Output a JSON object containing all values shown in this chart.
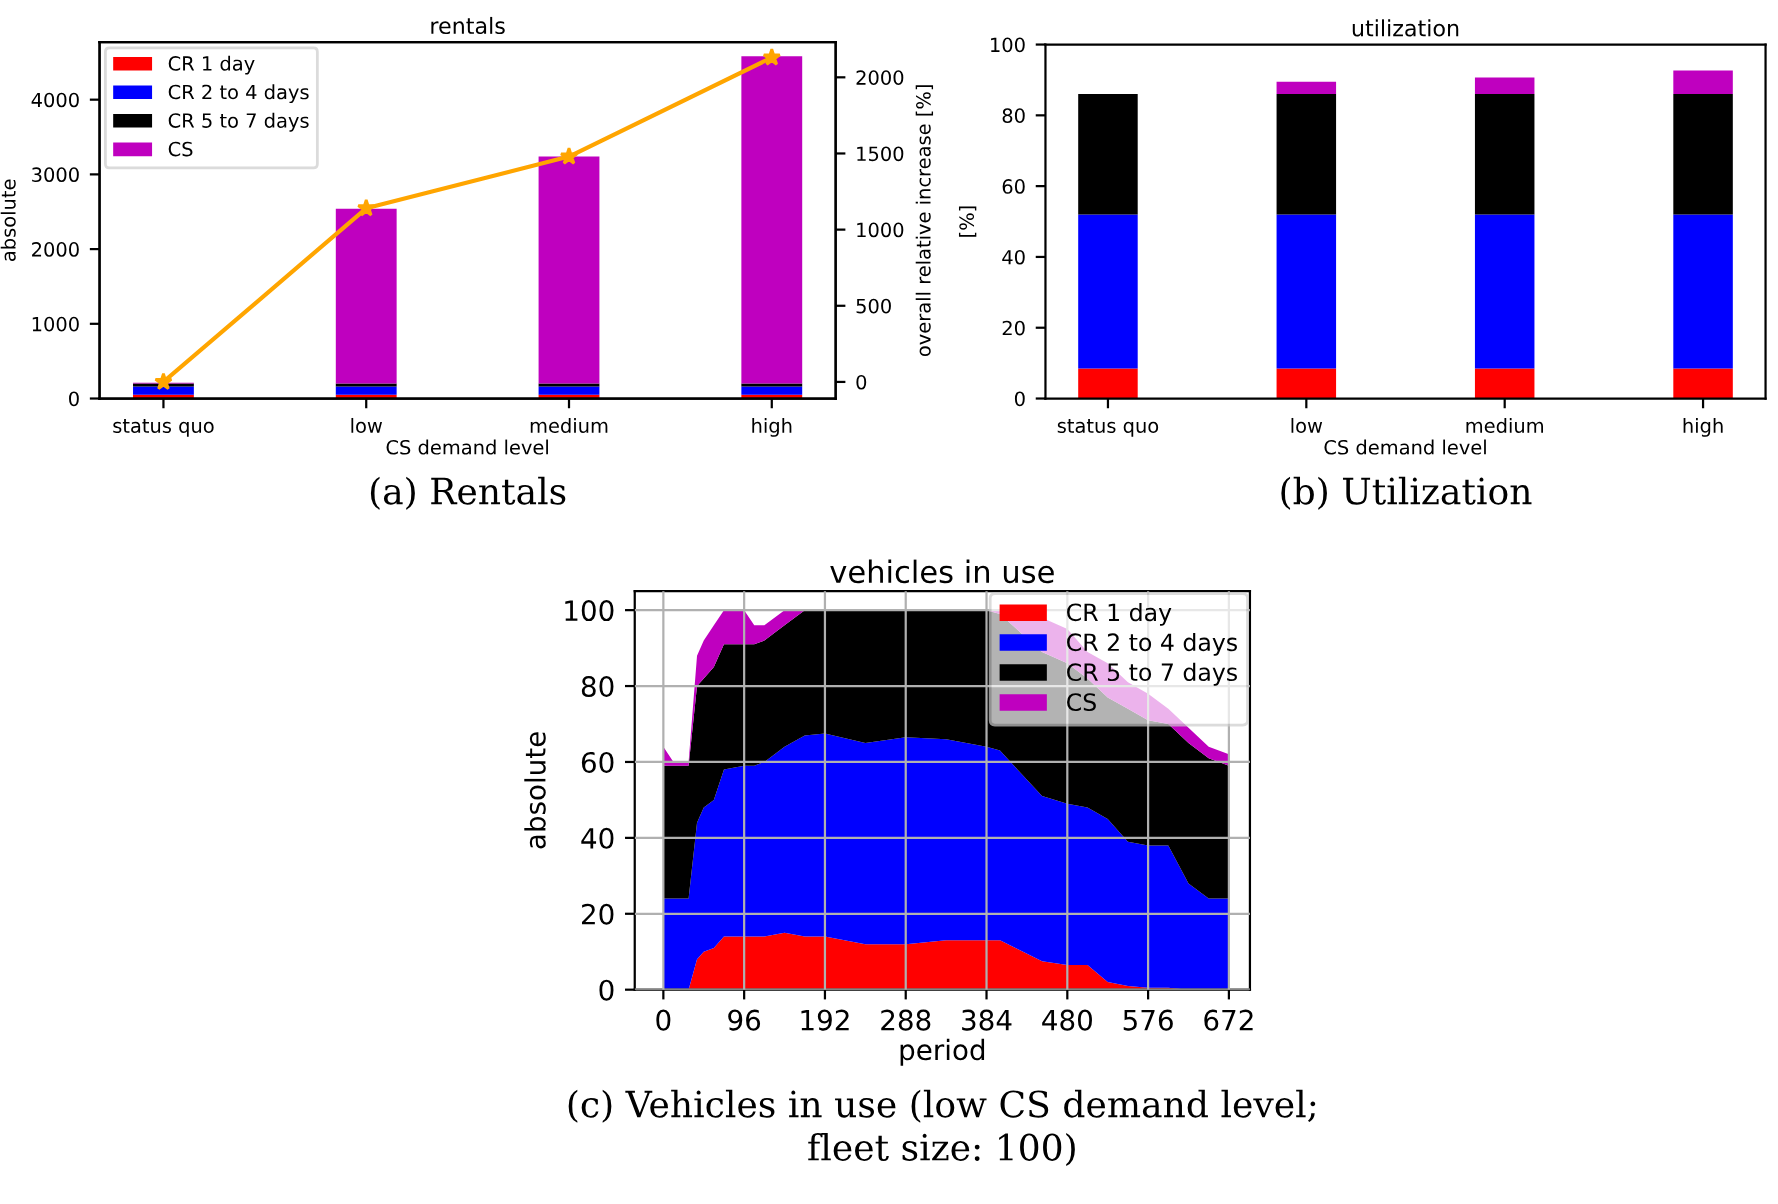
{
  "chart_data": [
    {
      "type": "bar",
      "title": "rentals",
      "stacked": true,
      "categories": [
        "status quo",
        "low",
        "medium",
        "high"
      ],
      "xlabel": "CS demand level",
      "ylabel": "absolute",
      "y2label": "overall relative increase [%]",
      "ylim": [
        0,
        4770
      ],
      "yticks": [
        0,
        1000,
        2000,
        3000,
        4000
      ],
      "y2lim": [
        -109,
        2231
      ],
      "y2ticks": [
        0,
        500,
        1000,
        1500,
        2000
      ],
      "legend": "top left",
      "grid": false,
      "series": [
        {
          "name": "CR 1 day",
          "color": "#ff0000",
          "values": [
            50,
            50,
            50,
            50
          ]
        },
        {
          "name": "CR 2 to 4 days",
          "color": "#0000ff",
          "values": [
            110,
            110,
            110,
            110
          ]
        },
        {
          "name": "CR 5 to 7 days",
          "color": "#000000",
          "values": [
            40,
            40,
            40,
            40
          ]
        },
        {
          "name": "CS",
          "color": "#bf00bf",
          "values": [
            10,
            2340,
            3040,
            4380
          ]
        },
        {
          "type": "line",
          "axis": "y2",
          "color": "#ffa500",
          "marker": "star",
          "values": [
            0,
            1140,
            1480,
            2130
          ]
        }
      ],
      "annotations": [
        "(a) Rentals"
      ]
    },
    {
      "type": "bar",
      "title": "utilization",
      "stacked": true,
      "categories": [
        "status quo",
        "low",
        "medium",
        "high"
      ],
      "xlabel": "CS demand level",
      "ylabel": "[%]",
      "ylim": [
        0,
        100
      ],
      "yticks": [
        0,
        20,
        40,
        60,
        80,
        100
      ],
      "legend": false,
      "grid": false,
      "series": [
        {
          "color": "#ff0000",
          "values": [
            8.5,
            8.5,
            8.5,
            8.5
          ]
        },
        {
          "color": "#0000ff",
          "values": [
            43.5,
            43.5,
            43.5,
            43.5
          ]
        },
        {
          "color": "#000000",
          "values": [
            34,
            34,
            34,
            34
          ]
        },
        {
          "color": "#bf00bf",
          "values": [
            0,
            3.5,
            4.7,
            6.7
          ]
        }
      ],
      "annotations": [
        "(b) Utilization"
      ]
    },
    {
      "type": "area",
      "title": "vehicles in use",
      "stacked": true,
      "xlabel": "period",
      "ylabel": "absolute",
      "x": [
        0,
        12,
        30,
        40,
        48,
        60,
        72,
        96,
        108,
        120,
        144,
        168,
        192,
        240,
        288,
        336,
        384,
        400,
        450,
        480,
        504,
        528,
        552,
        576,
        600,
        624,
        648,
        672
      ],
      "xlim": [
        -34,
        697
      ],
      "xticks": [
        0,
        96,
        192,
        288,
        384,
        480,
        576,
        672
      ],
      "ylim": [
        0,
        105
      ],
      "yticks": [
        0,
        20,
        40,
        60,
        80,
        100
      ],
      "legend": "top right",
      "grid": true,
      "series": [
        {
          "name": "CR 1 day",
          "color": "#ff0000",
          "values": [
            0,
            0,
            0,
            8,
            10,
            11,
            14,
            14,
            14,
            14,
            15,
            14,
            14,
            12,
            12,
            13,
            13,
            13,
            7.5,
            6.5,
            6.5,
            2,
            1,
            0.5,
            0.5,
            0,
            0,
            0
          ]
        },
        {
          "name": "CR 2 to 4 days",
          "color": "#0000ff",
          "values": [
            24,
            24,
            24,
            36,
            38,
            39,
            44,
            45,
            45,
            46,
            49,
            53,
            53.5,
            53,
            54.5,
            53,
            51,
            50,
            43.5,
            42.5,
            41.5,
            43,
            38,
            37.5,
            37.5,
            28,
            24,
            24
          ]
        },
        {
          "name": "CR 5 to 7 days",
          "color": "#000000",
          "values": [
            35,
            35,
            35,
            36,
            34,
            35,
            33,
            32,
            32,
            32,
            32,
            33,
            32.5,
            35,
            33.5,
            34,
            36,
            36,
            38,
            37,
            34,
            32,
            35,
            33,
            32,
            37,
            37,
            35
          ]
        },
        {
          "name": "CS",
          "color": "#bf00bf",
          "values": [
            5,
            1,
            1,
            8,
            10,
            11,
            9,
            9,
            5,
            4,
            4,
            0,
            0,
            0,
            0,
            0,
            0,
            1,
            9,
            9,
            7,
            9,
            7,
            7,
            4,
            4,
            3,
            3
          ]
        }
      ],
      "annotations": [
        "(c) Vehicles in use (low CS demand level;\nfleet size: 100)"
      ]
    }
  ]
}
